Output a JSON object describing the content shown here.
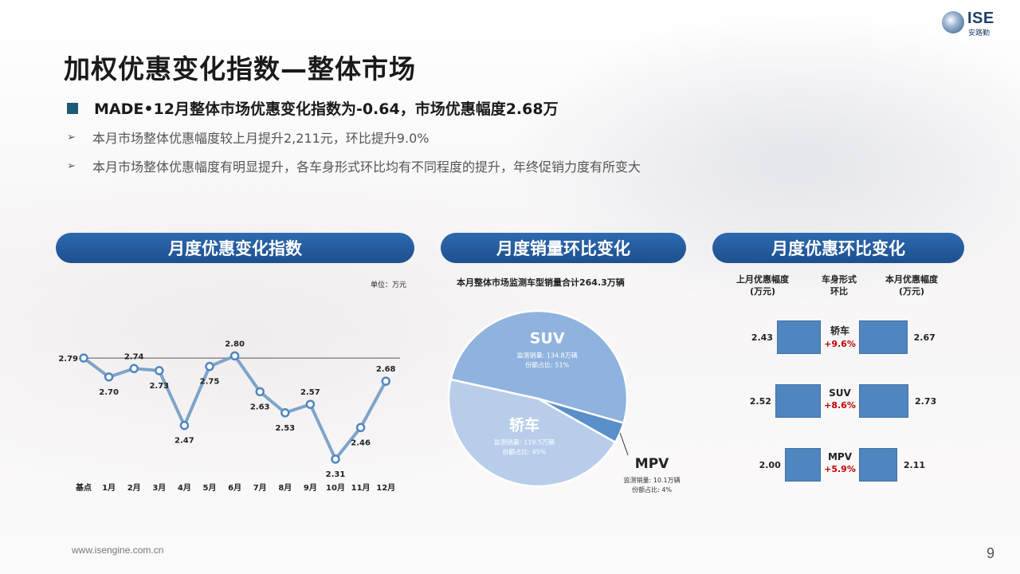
{
  "logo": {
    "mark": "ISE",
    "cn": "安路勤"
  },
  "title": "加权优惠变化指数—整体市场",
  "headline": "MADE•12月整体市场优惠变化指数为-0.64，市场优惠幅度2.68万",
  "bullets": [
    "本月市场整体优惠幅度较上月提升2,211元，环比提升9.0%",
    "本月市场整体优惠幅度有明显提升，各车身形式环比均有不同程度的提升，年终促销力度有所变大"
  ],
  "panels": {
    "line": "月度优惠变化指数",
    "pie": "月度销量环比变化",
    "bars": "月度优惠环比变化"
  },
  "unit_note": "单位：万元",
  "pie_note": "本月整体市场监测车型销量合计264.3万辆",
  "bars_headers": {
    "left": [
      "上月优惠幅度",
      "(万元)"
    ],
    "mid": [
      "车身形式",
      "环比"
    ],
    "right": [
      "本月优惠幅度",
      "(万元)"
    ]
  },
  "chart_data": [
    {
      "type": "line",
      "categories": [
        "基点",
        "1月",
        "2月",
        "3月",
        "4月",
        "5月",
        "6月",
        "7月",
        "8月",
        "9月",
        "10月",
        "11月",
        "12月"
      ],
      "values": [
        2.79,
        2.7,
        2.74,
        2.73,
        2.47,
        2.75,
        2.8,
        2.63,
        2.53,
        2.57,
        2.31,
        2.46,
        2.68
      ],
      "value_labels": [
        "2.79",
        "2.70",
        "2.74",
        "2.73",
        "2.47",
        "2.75",
        "2.80",
        "2.63",
        "2.53",
        "2.57",
        "2.31",
        "2.46",
        "2.68"
      ],
      "baseline": 2.79,
      "ylim": [
        2.2,
        2.9
      ],
      "colors": {
        "line": "#7da4c8",
        "marker": "#4f86c0",
        "baseline": "#555555"
      }
    },
    {
      "type": "pie",
      "slices": [
        {
          "name": "SUV",
          "value": 134.8,
          "share": 51,
          "detail_sales": "监测销量: 134.8万辆",
          "detail_share": "份额占比: 51%",
          "color": "#8fb3de"
        },
        {
          "name": "MPV",
          "value": 10.1,
          "share": 4,
          "detail_sales": "监测销量: 10.1万辆",
          "detail_share": "份额占比: 4%",
          "color": "#5b8fca"
        },
        {
          "name": "轿车",
          "value": 119.5,
          "share": 45,
          "detail_sales": "监测销量: 119.5万辆",
          "detail_share": "份额占比: 45%",
          "color": "#b7cdea"
        }
      ]
    },
    {
      "type": "bar",
      "categories": [
        "轿车",
        "SUV",
        "MPV"
      ],
      "series": [
        {
          "values": [
            2.43,
            2.52,
            2.0
          ],
          "labels": [
            "2.43",
            "2.52",
            "2.00"
          ]
        },
        {
          "values": [
            2.67,
            2.73,
            2.11
          ],
          "labels": [
            "2.67",
            "2.73",
            "2.11"
          ]
        }
      ],
      "changes": [
        "+9.6%",
        "+8.6%",
        "+5.9%"
      ],
      "xlim": [
        0,
        2.73
      ],
      "colors": {
        "bar": "#4f86c0",
        "change": "#c00000"
      }
    }
  ],
  "footer": "www.isengine.com.cn",
  "page_number": "9"
}
